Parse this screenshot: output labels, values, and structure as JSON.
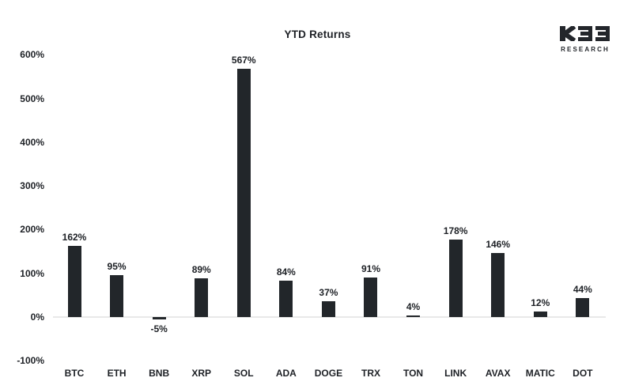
{
  "title": "YTD Returns",
  "logo": {
    "brand": "K33",
    "sub": "RESEARCH"
  },
  "colors": {
    "bar": "#22262a",
    "text": "#1d2025",
    "axis_line": "#e9e9e9",
    "background": "#ffffff",
    "logo": "#23262b"
  },
  "chart_data": {
    "type": "bar",
    "title": "YTD Returns",
    "categories": [
      "BTC",
      "ETH",
      "BNB",
      "XRP",
      "SOL",
      "ADA",
      "DOGE",
      "TRX",
      "TON",
      "LINK",
      "AVAX",
      "MATIC",
      "DOT"
    ],
    "values": [
      162,
      95,
      -5,
      89,
      567,
      84,
      37,
      91,
      4,
      178,
      146,
      12,
      44
    ],
    "value_labels": [
      "162%",
      "95%",
      "-5%",
      "89%",
      "567%",
      "84%",
      "37%",
      "91%",
      "4%",
      "178%",
      "146%",
      "12%",
      "44%"
    ],
    "y_ticks": [
      "600%",
      "500%",
      "400%",
      "300%",
      "200%",
      "100%",
      "0%",
      "-100%"
    ],
    "y_tick_values": [
      600,
      500,
      400,
      300,
      200,
      100,
      0,
      -100
    ],
    "ylim": [
      -100,
      600
    ],
    "xlabel": "",
    "ylabel": "",
    "grid": false,
    "legend": null,
    "bar_color": "#22262a"
  }
}
